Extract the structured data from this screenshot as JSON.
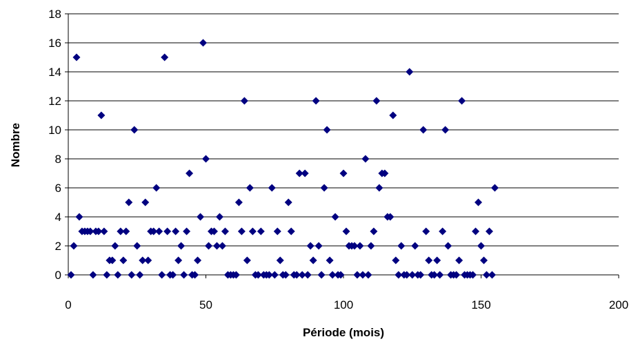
{
  "chart_data": {
    "type": "scatter",
    "title": "",
    "xlabel": "Période (mois)",
    "ylabel": "Nombre",
    "xlim": [
      0,
      200
    ],
    "ylim": [
      0,
      18
    ],
    "x_ticks": [
      0,
      50,
      100,
      150,
      200
    ],
    "y_ticks": [
      0,
      2,
      4,
      6,
      8,
      10,
      12,
      14,
      16,
      18
    ],
    "x_tick_labels": [
      "0",
      "50",
      "100",
      "150",
      "200"
    ],
    "y_tick_labels": [
      "0",
      "2",
      "4",
      "6",
      "8",
      "10",
      "12",
      "14",
      "16",
      "18"
    ],
    "grid": "horizontal",
    "legend": "none",
    "marker": "diamond",
    "marker_color": "#000080",
    "series": [
      {
        "points": [
          [
            1,
            0
          ],
          [
            2,
            2
          ],
          [
            3,
            15
          ],
          [
            4,
            4
          ],
          [
            5,
            3
          ],
          [
            6,
            3
          ],
          [
            7,
            3
          ],
          [
            8,
            3
          ],
          [
            9,
            0
          ],
          [
            10,
            3
          ],
          [
            11,
            3
          ],
          [
            12,
            11
          ],
          [
            13,
            3
          ],
          [
            14,
            0
          ],
          [
            15,
            1
          ],
          [
            16,
            1
          ],
          [
            17,
            2
          ],
          [
            18,
            0
          ],
          [
            19,
            3
          ],
          [
            20,
            1
          ],
          [
            21,
            3
          ],
          [
            22,
            5
          ],
          [
            23,
            0
          ],
          [
            24,
            10
          ],
          [
            25,
            2
          ],
          [
            26,
            0
          ],
          [
            27,
            1
          ],
          [
            28,
            5
          ],
          [
            29,
            1
          ],
          [
            30,
            3
          ],
          [
            31,
            3
          ],
          [
            32,
            6
          ],
          [
            33,
            3
          ],
          [
            34,
            0
          ],
          [
            35,
            15
          ],
          [
            36,
            3
          ],
          [
            37,
            0
          ],
          [
            38,
            0
          ],
          [
            39,
            3
          ],
          [
            40,
            1
          ],
          [
            41,
            2
          ],
          [
            42,
            0
          ],
          [
            43,
            3
          ],
          [
            44,
            7
          ],
          [
            45,
            0
          ],
          [
            46,
            0
          ],
          [
            47,
            1
          ],
          [
            48,
            4
          ],
          [
            49,
            16
          ],
          [
            50,
            8
          ],
          [
            51,
            2
          ],
          [
            52,
            3
          ],
          [
            53,
            3
          ],
          [
            54,
            2
          ],
          [
            55,
            4
          ],
          [
            56,
            2
          ],
          [
            57,
            3
          ],
          [
            58,
            0
          ],
          [
            59,
            0
          ],
          [
            60,
            0
          ],
          [
            61,
            0
          ],
          [
            62,
            5
          ],
          [
            63,
            3
          ],
          [
            64,
            12
          ],
          [
            65,
            1
          ],
          [
            66,
            6
          ],
          [
            67,
            3
          ],
          [
            68,
            0
          ],
          [
            69,
            0
          ],
          [
            70,
            3
          ],
          [
            71,
            0
          ],
          [
            72,
            0
          ],
          [
            73,
            0
          ],
          [
            74,
            6
          ],
          [
            75,
            0
          ],
          [
            76,
            3
          ],
          [
            77,
            1
          ],
          [
            78,
            0
          ],
          [
            79,
            0
          ],
          [
            80,
            5
          ],
          [
            81,
            3
          ],
          [
            82,
            0
          ],
          [
            83,
            0
          ],
          [
            84,
            7
          ],
          [
            85,
            0
          ],
          [
            86,
            7
          ],
          [
            87,
            0
          ],
          [
            88,
            2
          ],
          [
            89,
            1
          ],
          [
            90,
            12
          ],
          [
            91,
            2
          ],
          [
            92,
            0
          ],
          [
            93,
            6
          ],
          [
            94,
            10
          ],
          [
            95,
            1
          ],
          [
            96,
            0
          ],
          [
            97,
            4
          ],
          [
            98,
            0
          ],
          [
            99,
            0
          ],
          [
            100,
            7
          ],
          [
            101,
            3
          ],
          [
            102,
            2
          ],
          [
            103,
            2
          ],
          [
            104,
            2
          ],
          [
            105,
            0
          ],
          [
            106,
            2
          ],
          [
            107,
            0
          ],
          [
            108,
            8
          ],
          [
            109,
            0
          ],
          [
            110,
            2
          ],
          [
            111,
            3
          ],
          [
            112,
            12
          ],
          [
            113,
            6
          ],
          [
            114,
            7
          ],
          [
            115,
            7
          ],
          [
            116,
            4
          ],
          [
            117,
            4
          ],
          [
            118,
            11
          ],
          [
            119,
            1
          ],
          [
            120,
            0
          ],
          [
            121,
            2
          ],
          [
            122,
            0
          ],
          [
            123,
            0
          ],
          [
            124,
            14
          ],
          [
            125,
            0
          ],
          [
            126,
            2
          ],
          [
            127,
            0
          ],
          [
            128,
            0
          ],
          [
            129,
            10
          ],
          [
            130,
            3
          ],
          [
            131,
            1
          ],
          [
            132,
            0
          ],
          [
            133,
            0
          ],
          [
            134,
            1
          ],
          [
            135,
            0
          ],
          [
            136,
            3
          ],
          [
            137,
            10
          ],
          [
            138,
            2
          ],
          [
            139,
            0
          ],
          [
            140,
            0
          ],
          [
            141,
            0
          ],
          [
            142,
            1
          ],
          [
            143,
            12
          ],
          [
            144,
            0
          ],
          [
            145,
            0
          ],
          [
            146,
            0
          ],
          [
            147,
            0
          ],
          [
            148,
            3
          ],
          [
            149,
            5
          ],
          [
            150,
            2
          ],
          [
            151,
            1
          ],
          [
            152,
            0
          ],
          [
            153,
            3
          ],
          [
            154,
            0
          ],
          [
            155,
            6
          ]
        ]
      }
    ]
  }
}
